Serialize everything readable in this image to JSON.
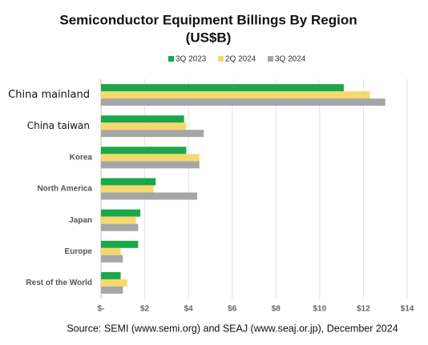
{
  "chart_data": {
    "type": "hbar",
    "title": "Semiconductor Equipment Billings By Region",
    "subtitle": "(US$B)",
    "categories": [
      "China mainland",
      "China taiwan",
      "Korea",
      "North America",
      "Japan",
      "Europe",
      "Rest of the World"
    ],
    "series": [
      {
        "name": "3Q 2023",
        "color": "#1aa84a",
        "values": [
          11.1,
          3.8,
          3.9,
          2.5,
          1.8,
          1.7,
          0.9
        ]
      },
      {
        "name": "2Q 2024",
        "color": "#f6d86f",
        "values": [
          12.3,
          3.9,
          4.5,
          2.4,
          1.6,
          0.9,
          1.2
        ]
      },
      {
        "name": "3Q 2024",
        "color": "#a6a6a6",
        "values": [
          13.0,
          4.7,
          4.5,
          4.4,
          1.7,
          1.0,
          1.0
        ]
      }
    ],
    "xlim": [
      0,
      14
    ],
    "xticks": [
      {
        "value": 0,
        "label": "$-"
      },
      {
        "value": 2,
        "label": "$2"
      },
      {
        "value": 4,
        "label": "$4"
      },
      {
        "value": 6,
        "label": "$6"
      },
      {
        "value": 8,
        "label": "$8"
      },
      {
        "value": 10,
        "label": "$10"
      },
      {
        "value": 12,
        "label": "$12"
      },
      {
        "value": 14,
        "label": "$14"
      }
    ],
    "grid": true,
    "legend": "top",
    "source": "Source: SEMI (www.semi.org) and SEAJ (www.seaj.or.jp), December 2024"
  }
}
